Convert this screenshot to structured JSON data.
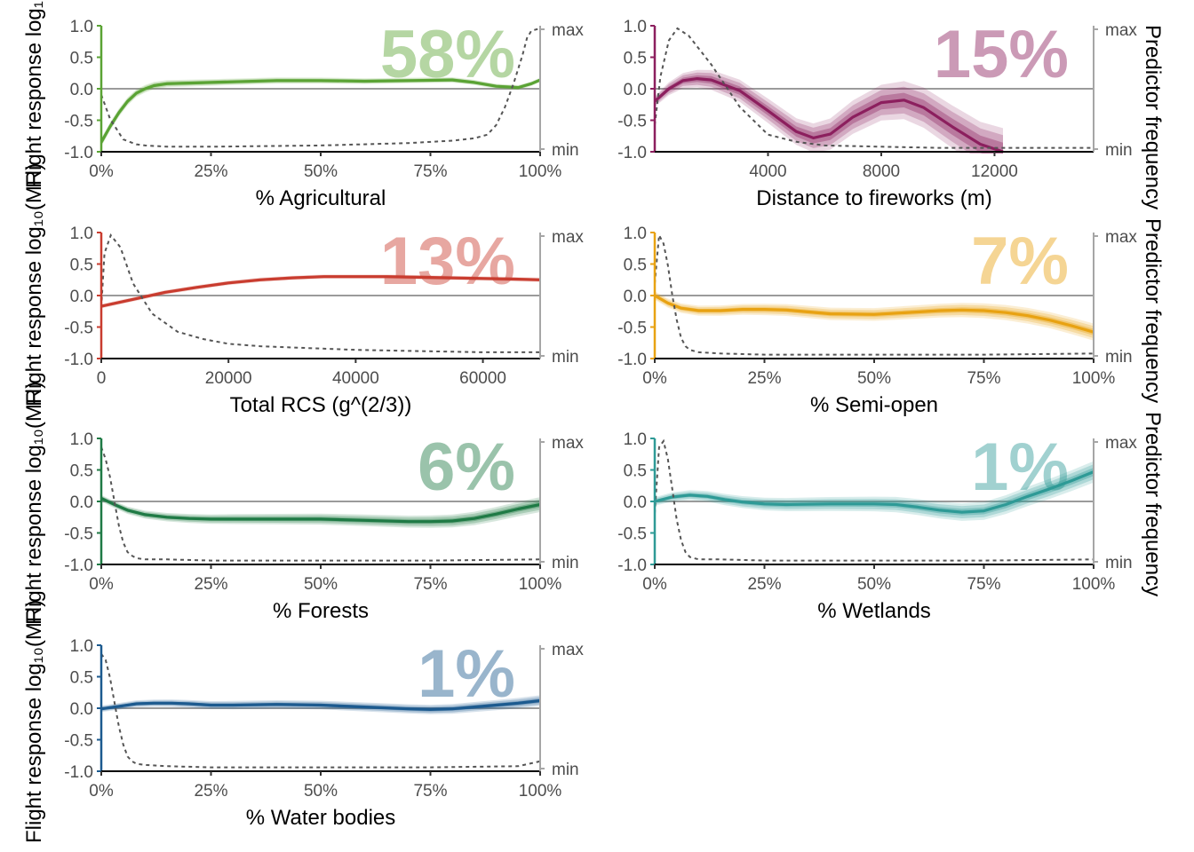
{
  "figure": {
    "left_axis_title": "Flight response log₁₀(MR)",
    "right_axis_title": "Predictor frequency",
    "freq_max_label": "max",
    "freq_min_label": "min"
  },
  "chart_data": [
    {
      "type": "line",
      "panel": "agricultural",
      "xlabel": "% Agricultural",
      "importance": "58%",
      "color": "#5aa334",
      "xlim": [
        0,
        100
      ],
      "ylim": [
        -1,
        1
      ],
      "xticks": [
        0,
        25,
        50,
        75,
        100
      ],
      "xtick_labels": [
        "0%",
        "25%",
        "50%",
        "75%",
        "100%"
      ],
      "yticks": [
        -1,
        -0.5,
        0,
        0.5,
        1
      ],
      "ytick_labels": [
        "-1.0",
        "-0.5",
        "0.0",
        "0.5",
        "1.0"
      ],
      "series": [
        {
          "x": [
            0,
            2,
            4,
            6,
            8,
            10,
            12,
            15,
            20,
            25,
            30,
            40,
            50,
            60,
            70,
            80,
            85,
            90,
            95,
            98,
            100
          ],
          "y": [
            -0.85,
            -0.6,
            -0.38,
            -0.2,
            -0.07,
            0.0,
            0.05,
            0.08,
            0.09,
            0.1,
            0.11,
            0.13,
            0.13,
            0.12,
            0.13,
            0.14,
            0.1,
            0.04,
            0.02,
            0.08,
            0.14
          ]
        }
      ],
      "ci_width": [
        0.04,
        0.02
      ],
      "frequency": {
        "x": [
          0,
          2,
          5,
          8,
          10,
          15,
          25,
          50,
          70,
          80,
          85,
          88,
          90,
          92,
          94,
          96,
          97,
          98,
          100
        ],
        "y": [
          0.45,
          0.25,
          0.08,
          0.04,
          0.03,
          0.02,
          0.02,
          0.03,
          0.05,
          0.07,
          0.09,
          0.12,
          0.2,
          0.35,
          0.55,
          0.78,
          0.92,
          0.98,
          1.0
        ]
      }
    },
    {
      "type": "line",
      "panel": "fireworks",
      "xlabel": "Distance to fireworks (m)",
      "importance": "15%",
      "color": "#8c1f5e",
      "xlim": [
        0,
        15500
      ],
      "ylim": [
        -1,
        1
      ],
      "xticks": [
        4000,
        8000,
        12000
      ],
      "xtick_labels": [
        "4000",
        "8000",
        "12000"
      ],
      "yticks": [
        -1,
        -0.5,
        0,
        0.5,
        1
      ],
      "ytick_labels": [
        "-1.0",
        "-0.5",
        "0.0",
        "0.5",
        "1.0"
      ],
      "series": [
        {
          "x": [
            0,
            500,
            1000,
            1500,
            2000,
            3000,
            4000,
            5000,
            5600,
            6200,
            7000,
            8000,
            8800,
            9500,
            10500,
            11500,
            12300
          ],
          "y": [
            -0.2,
            0.0,
            0.13,
            0.16,
            0.14,
            -0.03,
            -0.35,
            -0.68,
            -0.78,
            -0.72,
            -0.45,
            -0.22,
            -0.18,
            -0.3,
            -0.6,
            -0.88,
            -1.0
          ]
        }
      ],
      "ci_width": [
        0.05,
        0.22
      ],
      "frequency": {
        "x": [
          0,
          200,
          500,
          800,
          1200,
          2000,
          3000,
          4000,
          5000,
          6000,
          8000,
          10000,
          12000,
          15500
        ],
        "y": [
          0.2,
          0.6,
          0.9,
          1.0,
          0.94,
          0.7,
          0.35,
          0.12,
          0.06,
          0.03,
          0.02,
          0.01,
          0.01,
          0.01
        ]
      }
    },
    {
      "type": "line",
      "panel": "rcs",
      "xlabel": "Total RCS (g^(2/3))",
      "importance": "13%",
      "color": "#c93c2f",
      "xlim": [
        0,
        69000
      ],
      "ylim": [
        -1,
        1
      ],
      "xticks": [
        0,
        20000,
        40000,
        60000
      ],
      "xtick_labels": [
        "0",
        "20000",
        "40000",
        "60000"
      ],
      "yticks": [
        -1,
        -0.5,
        0,
        0.5,
        1
      ],
      "ytick_labels": [
        "-1.0",
        "-0.5",
        "0.0",
        "0.5",
        "1.0"
      ],
      "series": [
        {
          "x": [
            0,
            5000,
            10000,
            15000,
            20000,
            25000,
            30000,
            35000,
            40000,
            45000,
            50000,
            55000,
            60000,
            65000,
            69000
          ],
          "y": [
            -0.17,
            -0.06,
            0.05,
            0.13,
            0.2,
            0.25,
            0.28,
            0.3,
            0.3,
            0.3,
            0.29,
            0.28,
            0.27,
            0.26,
            0.25
          ]
        }
      ],
      "ci_width": [
        0.02,
        0.02
      ],
      "frequency": {
        "x": [
          0,
          500,
          1500,
          3000,
          5000,
          8000,
          12000,
          16000,
          20000,
          25000,
          30000,
          40000,
          50000,
          60000,
          69000
        ],
        "y": [
          0.4,
          0.85,
          1.0,
          0.9,
          0.6,
          0.35,
          0.2,
          0.14,
          0.1,
          0.08,
          0.07,
          0.05,
          0.04,
          0.03,
          0.03
        ]
      }
    },
    {
      "type": "line",
      "panel": "semi-open",
      "xlabel": "% Semi-open",
      "importance": "7%",
      "color": "#e8a212",
      "xlim": [
        0,
        100
      ],
      "ylim": [
        -1,
        1
      ],
      "xticks": [
        0,
        25,
        50,
        75,
        100
      ],
      "xtick_labels": [
        "0%",
        "25%",
        "50%",
        "75%",
        "100%"
      ],
      "yticks": [
        -1,
        -0.5,
        0,
        0.5,
        1
      ],
      "ytick_labels": [
        "-1.0",
        "-0.5",
        "0.0",
        "0.5",
        "1.0"
      ],
      "series": [
        {
          "x": [
            0,
            3,
            6,
            10,
            15,
            20,
            25,
            30,
            40,
            50,
            60,
            65,
            70,
            75,
            80,
            85,
            90,
            95,
            100
          ],
          "y": [
            0.0,
            -0.12,
            -0.2,
            -0.24,
            -0.24,
            -0.22,
            -0.22,
            -0.23,
            -0.29,
            -0.3,
            -0.26,
            -0.24,
            -0.23,
            -0.24,
            -0.27,
            -0.32,
            -0.39,
            -0.48,
            -0.58
          ]
        }
      ],
      "ci_width": [
        0.04,
        0.08
      ],
      "frequency": {
        "x": [
          0,
          1,
          2,
          3,
          4,
          5,
          6,
          7,
          8,
          10,
          15,
          25,
          50,
          75,
          100
        ],
        "y": [
          0.6,
          1.0,
          0.93,
          0.75,
          0.5,
          0.3,
          0.15,
          0.08,
          0.05,
          0.03,
          0.02,
          0.01,
          0.01,
          0.01,
          0.02
        ]
      }
    },
    {
      "type": "line",
      "panel": "forests",
      "xlabel": "% Forests",
      "importance": "6%",
      "color": "#1f7a45",
      "xlim": [
        0,
        100
      ],
      "ylim": [
        -1,
        1
      ],
      "xticks": [
        0,
        25,
        50,
        75,
        100
      ],
      "xtick_labels": [
        "0%",
        "25%",
        "50%",
        "75%",
        "100%"
      ],
      "yticks": [
        -1,
        -0.5,
        0,
        0.5,
        1
      ],
      "ytick_labels": [
        "-1.0",
        "-0.5",
        "0.0",
        "0.5",
        "1.0"
      ],
      "series": [
        {
          "x": [
            0,
            3,
            6,
            10,
            15,
            20,
            25,
            30,
            40,
            50,
            60,
            70,
            75,
            80,
            85,
            90,
            95,
            100
          ],
          "y": [
            0.05,
            -0.05,
            -0.14,
            -0.21,
            -0.25,
            -0.27,
            -0.28,
            -0.28,
            -0.28,
            -0.28,
            -0.3,
            -0.32,
            -0.32,
            -0.31,
            -0.27,
            -0.2,
            -0.12,
            -0.05
          ]
        }
      ],
      "ci_width": [
        0.03,
        0.07
      ],
      "frequency": {
        "x": [
          0,
          1,
          2,
          3,
          4,
          5,
          6,
          7,
          8,
          10,
          15,
          25,
          50,
          75,
          100
        ],
        "y": [
          0.95,
          0.85,
          0.7,
          0.5,
          0.3,
          0.16,
          0.08,
          0.05,
          0.03,
          0.02,
          0.02,
          0.01,
          0.01,
          0.01,
          0.02
        ]
      }
    },
    {
      "type": "line",
      "panel": "wetlands",
      "xlabel": "% Wetlands",
      "importance": "1%",
      "color": "#2e9a96",
      "xlim": [
        0,
        100
      ],
      "ylim": [
        -1,
        1
      ],
      "xticks": [
        0,
        25,
        50,
        75,
        100
      ],
      "xtick_labels": [
        "0%",
        "25%",
        "50%",
        "75%",
        "100%"
      ],
      "yticks": [
        -1,
        -0.5,
        0,
        0.5,
        1
      ],
      "ytick_labels": [
        "-1.0",
        "-0.5",
        "0.0",
        "0.5",
        "1.0"
      ],
      "series": [
        {
          "x": [
            0,
            4,
            8,
            12,
            16,
            20,
            25,
            30,
            40,
            50,
            55,
            60,
            65,
            70,
            75,
            80,
            85,
            90,
            95,
            100
          ],
          "y": [
            0.0,
            0.07,
            0.1,
            0.08,
            0.03,
            -0.01,
            -0.04,
            -0.05,
            -0.04,
            -0.04,
            -0.05,
            -0.09,
            -0.14,
            -0.17,
            -0.15,
            -0.05,
            0.08,
            0.2,
            0.33,
            0.47
          ]
        }
      ],
      "ci_width": [
        0.04,
        0.1
      ],
      "frequency": {
        "x": [
          0,
          1,
          2,
          3,
          4,
          5,
          6,
          7,
          8,
          10,
          15,
          25,
          50,
          75,
          100
        ],
        "y": [
          0.4,
          0.95,
          1.0,
          0.85,
          0.6,
          0.35,
          0.18,
          0.08,
          0.04,
          0.02,
          0.02,
          0.01,
          0.01,
          0.01,
          0.02
        ]
      }
    },
    {
      "type": "line",
      "panel": "water",
      "xlabel": "% Water bodies",
      "importance": "1%",
      "color": "#1c5a8f",
      "xlim": [
        0,
        100
      ],
      "ylim": [
        -1,
        1
      ],
      "xticks": [
        0,
        25,
        50,
        75,
        100
      ],
      "xtick_labels": [
        "0%",
        "25%",
        "50%",
        "75%",
        "100%"
      ],
      "yticks": [
        -1,
        -0.5,
        0,
        0.5,
        1
      ],
      "ytick_labels": [
        "-1.0",
        "-0.5",
        "0.0",
        "0.5",
        "1.0"
      ],
      "series": [
        {
          "x": [
            0,
            4,
            8,
            12,
            16,
            20,
            25,
            30,
            40,
            50,
            60,
            70,
            75,
            80,
            85,
            90,
            95,
            100
          ],
          "y": [
            -0.01,
            0.03,
            0.07,
            0.08,
            0.08,
            0.07,
            0.05,
            0.05,
            0.06,
            0.05,
            0.02,
            -0.01,
            -0.02,
            -0.01,
            0.02,
            0.05,
            0.08,
            0.12
          ]
        }
      ],
      "ci_width": [
        0.03,
        0.05
      ],
      "frequency": {
        "x": [
          0,
          1,
          2,
          3,
          4,
          5,
          6,
          7,
          8,
          10,
          15,
          25,
          50,
          75,
          95,
          100
        ],
        "y": [
          0.95,
          0.9,
          0.75,
          0.55,
          0.35,
          0.2,
          0.1,
          0.06,
          0.04,
          0.03,
          0.02,
          0.01,
          0.01,
          0.01,
          0.02,
          0.06
        ]
      }
    }
  ]
}
